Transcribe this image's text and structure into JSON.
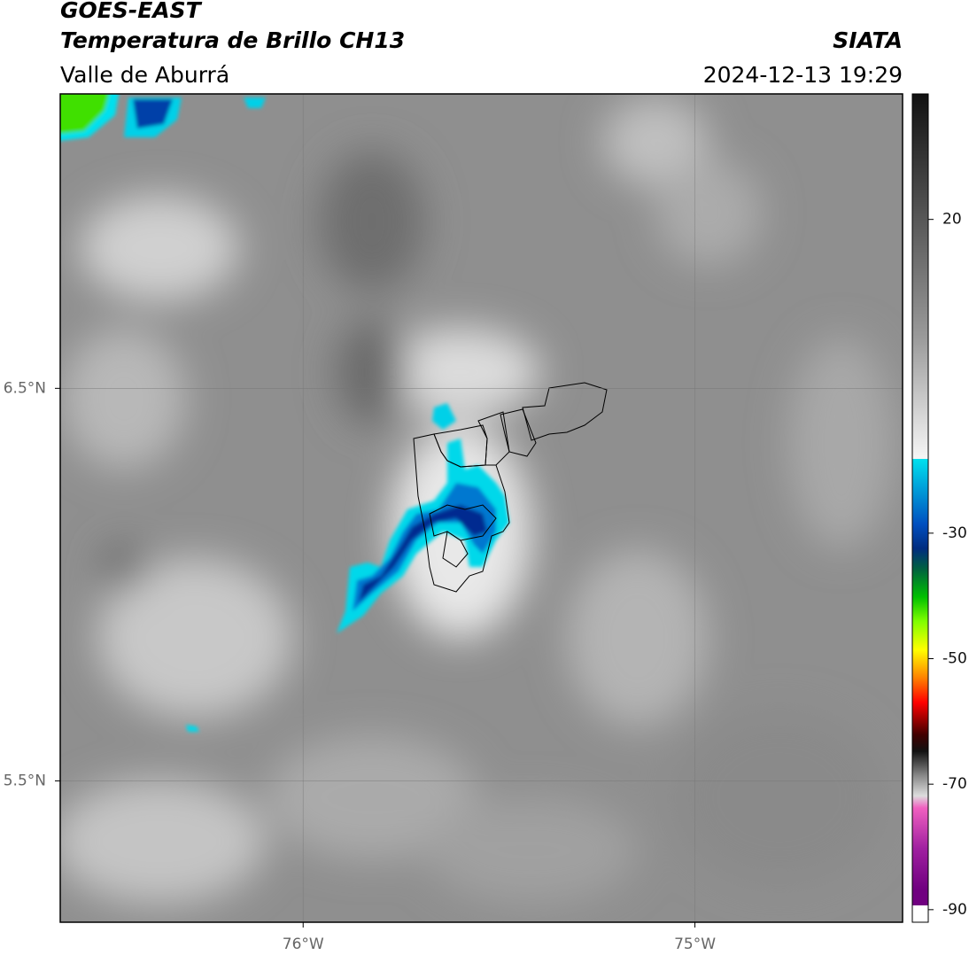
{
  "header": {
    "title": "GOES-EAST",
    "subtitle": "Temperatura de Brillo CH13",
    "region": "Valle de Aburrá",
    "source": "SIATA",
    "datetime": "2024-12-13 19:29"
  },
  "map": {
    "xlim": [
      -76.62,
      -74.47
    ],
    "ylim": [
      5.14,
      7.25
    ],
    "xticks": [
      {
        "value": -76,
        "label": "76°W"
      },
      {
        "value": -75,
        "label": "75°W"
      }
    ],
    "yticks": [
      {
        "value": 6.5,
        "label": "6.5°N"
      },
      {
        "value": 5.5,
        "label": "5.5°N"
      }
    ],
    "grid": true
  },
  "colorbar": {
    "lim": [
      -92,
      40
    ],
    "ticks": [
      20,
      -30,
      -50,
      -70,
      -90
    ]
  }
}
